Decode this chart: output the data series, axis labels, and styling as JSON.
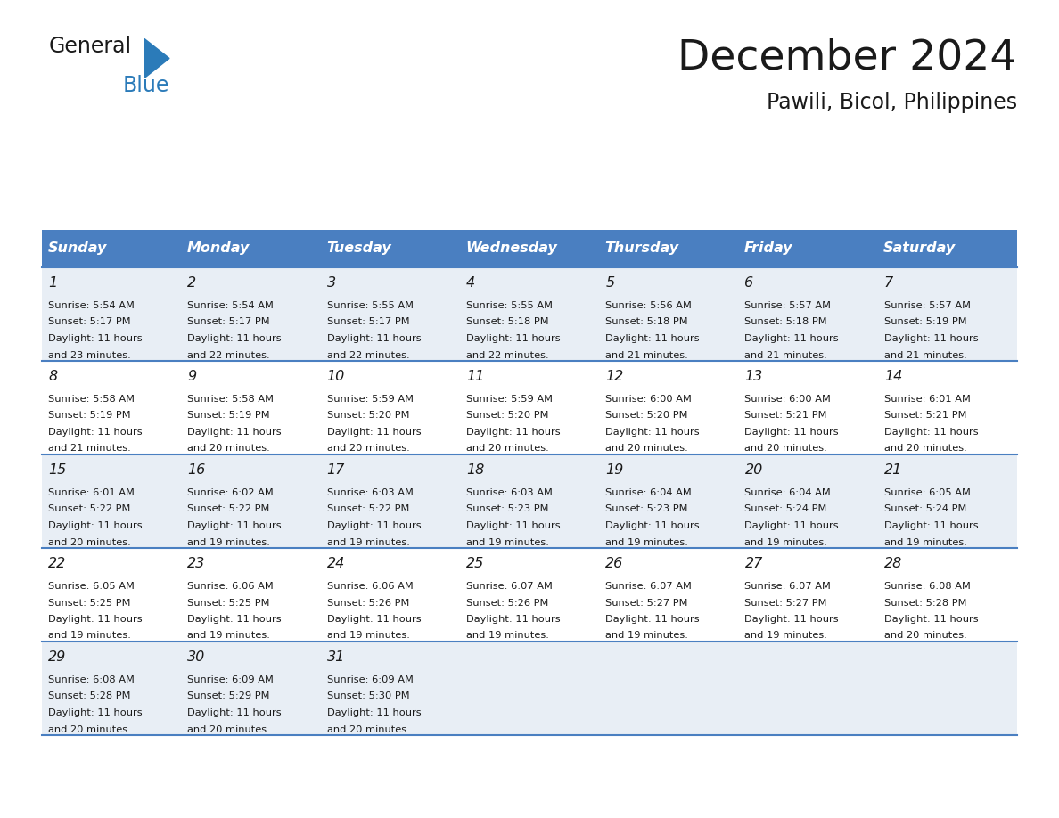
{
  "title": "December 2024",
  "subtitle": "Pawili, Bicol, Philippines",
  "header_bg": "#4a7fc1",
  "header_text_color": "#FFFFFF",
  "row_bg_odd": "#E8EEF5",
  "row_bg_even": "#FFFFFF",
  "cell_border_color": "#4a7fc1",
  "days_of_week": [
    "Sunday",
    "Monday",
    "Tuesday",
    "Wednesday",
    "Thursday",
    "Friday",
    "Saturday"
  ],
  "logo_general_color": "#1a1a1a",
  "logo_blue_color": "#2B7BB9",
  "calendar_data": [
    [
      {
        "day": 1,
        "sunrise": "5:54 AM",
        "sunset": "5:17 PM",
        "daylight": "11 hours and 23 minutes."
      },
      {
        "day": 2,
        "sunrise": "5:54 AM",
        "sunset": "5:17 PM",
        "daylight": "11 hours and 22 minutes."
      },
      {
        "day": 3,
        "sunrise": "5:55 AM",
        "sunset": "5:17 PM",
        "daylight": "11 hours and 22 minutes."
      },
      {
        "day": 4,
        "sunrise": "5:55 AM",
        "sunset": "5:18 PM",
        "daylight": "11 hours and 22 minutes."
      },
      {
        "day": 5,
        "sunrise": "5:56 AM",
        "sunset": "5:18 PM",
        "daylight": "11 hours and 21 minutes."
      },
      {
        "day": 6,
        "sunrise": "5:57 AM",
        "sunset": "5:18 PM",
        "daylight": "11 hours and 21 minutes."
      },
      {
        "day": 7,
        "sunrise": "5:57 AM",
        "sunset": "5:19 PM",
        "daylight": "11 hours and 21 minutes."
      }
    ],
    [
      {
        "day": 8,
        "sunrise": "5:58 AM",
        "sunset": "5:19 PM",
        "daylight": "11 hours and 21 minutes."
      },
      {
        "day": 9,
        "sunrise": "5:58 AM",
        "sunset": "5:19 PM",
        "daylight": "11 hours and 20 minutes."
      },
      {
        "day": 10,
        "sunrise": "5:59 AM",
        "sunset": "5:20 PM",
        "daylight": "11 hours and 20 minutes."
      },
      {
        "day": 11,
        "sunrise": "5:59 AM",
        "sunset": "5:20 PM",
        "daylight": "11 hours and 20 minutes."
      },
      {
        "day": 12,
        "sunrise": "6:00 AM",
        "sunset": "5:20 PM",
        "daylight": "11 hours and 20 minutes."
      },
      {
        "day": 13,
        "sunrise": "6:00 AM",
        "sunset": "5:21 PM",
        "daylight": "11 hours and 20 minutes."
      },
      {
        "day": 14,
        "sunrise": "6:01 AM",
        "sunset": "5:21 PM",
        "daylight": "11 hours and 20 minutes."
      }
    ],
    [
      {
        "day": 15,
        "sunrise": "6:01 AM",
        "sunset": "5:22 PM",
        "daylight": "11 hours and 20 minutes."
      },
      {
        "day": 16,
        "sunrise": "6:02 AM",
        "sunset": "5:22 PM",
        "daylight": "11 hours and 19 minutes."
      },
      {
        "day": 17,
        "sunrise": "6:03 AM",
        "sunset": "5:22 PM",
        "daylight": "11 hours and 19 minutes."
      },
      {
        "day": 18,
        "sunrise": "6:03 AM",
        "sunset": "5:23 PM",
        "daylight": "11 hours and 19 minutes."
      },
      {
        "day": 19,
        "sunrise": "6:04 AM",
        "sunset": "5:23 PM",
        "daylight": "11 hours and 19 minutes."
      },
      {
        "day": 20,
        "sunrise": "6:04 AM",
        "sunset": "5:24 PM",
        "daylight": "11 hours and 19 minutes."
      },
      {
        "day": 21,
        "sunrise": "6:05 AM",
        "sunset": "5:24 PM",
        "daylight": "11 hours and 19 minutes."
      }
    ],
    [
      {
        "day": 22,
        "sunrise": "6:05 AM",
        "sunset": "5:25 PM",
        "daylight": "11 hours and 19 minutes."
      },
      {
        "day": 23,
        "sunrise": "6:06 AM",
        "sunset": "5:25 PM",
        "daylight": "11 hours and 19 minutes."
      },
      {
        "day": 24,
        "sunrise": "6:06 AM",
        "sunset": "5:26 PM",
        "daylight": "11 hours and 19 minutes."
      },
      {
        "day": 25,
        "sunrise": "6:07 AM",
        "sunset": "5:26 PM",
        "daylight": "11 hours and 19 minutes."
      },
      {
        "day": 26,
        "sunrise": "6:07 AM",
        "sunset": "5:27 PM",
        "daylight": "11 hours and 19 minutes."
      },
      {
        "day": 27,
        "sunrise": "6:07 AM",
        "sunset": "5:27 PM",
        "daylight": "11 hours and 19 minutes."
      },
      {
        "day": 28,
        "sunrise": "6:08 AM",
        "sunset": "5:28 PM",
        "daylight": "11 hours and 20 minutes."
      }
    ],
    [
      {
        "day": 29,
        "sunrise": "6:08 AM",
        "sunset": "5:28 PM",
        "daylight": "11 hours and 20 minutes."
      },
      {
        "day": 30,
        "sunrise": "6:09 AM",
        "sunset": "5:29 PM",
        "daylight": "11 hours and 20 minutes."
      },
      {
        "day": 31,
        "sunrise": "6:09 AM",
        "sunset": "5:30 PM",
        "daylight": "11 hours and 20 minutes."
      },
      null,
      null,
      null,
      null
    ]
  ]
}
